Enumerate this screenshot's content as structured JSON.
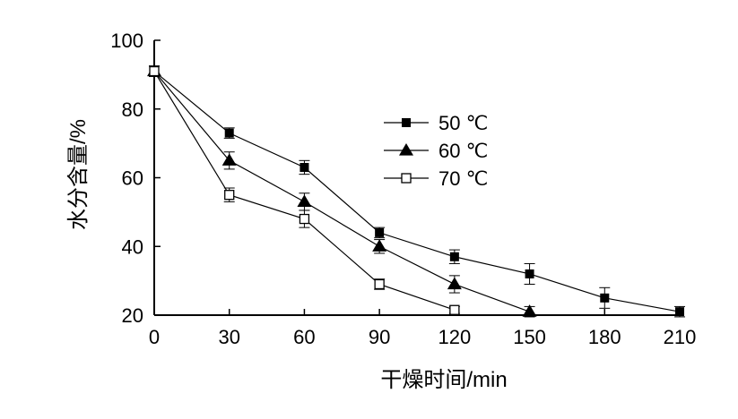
{
  "chart_data": {
    "type": "line",
    "xlabel": "干燥时间/min",
    "ylabel": "水分含量/%",
    "xlim": [
      0,
      210
    ],
    "ylim": [
      20,
      100
    ],
    "xticks": [
      0,
      30,
      60,
      90,
      120,
      150,
      180,
      210
    ],
    "yticks": [
      20,
      40,
      60,
      80,
      100
    ],
    "grid": false,
    "legend_position": "upper-center",
    "series": [
      {
        "name": "50 ℃",
        "marker": "filled-square",
        "x": [
          0,
          30,
          60,
          90,
          120,
          150,
          180,
          210
        ],
        "values": [
          91,
          73,
          63,
          44,
          37,
          32,
          25,
          21
        ],
        "error": [
          1.5,
          1.5,
          2,
          1.5,
          2,
          3,
          3,
          1.5
        ]
      },
      {
        "name": "60 ℃",
        "marker": "filled-triangle",
        "x": [
          0,
          30,
          60,
          90,
          120,
          150
        ],
        "values": [
          91,
          65,
          53,
          40,
          29,
          21
        ],
        "error": [
          1.5,
          2.5,
          2.5,
          2,
          2.5,
          1.5
        ]
      },
      {
        "name": "70 ℃",
        "marker": "open-square",
        "x": [
          0,
          30,
          60,
          90,
          120
        ],
        "values": [
          91,
          55,
          48,
          29,
          21.5
        ],
        "error": [
          1.5,
          2,
          2.5,
          1.5,
          1
        ]
      }
    ]
  }
}
